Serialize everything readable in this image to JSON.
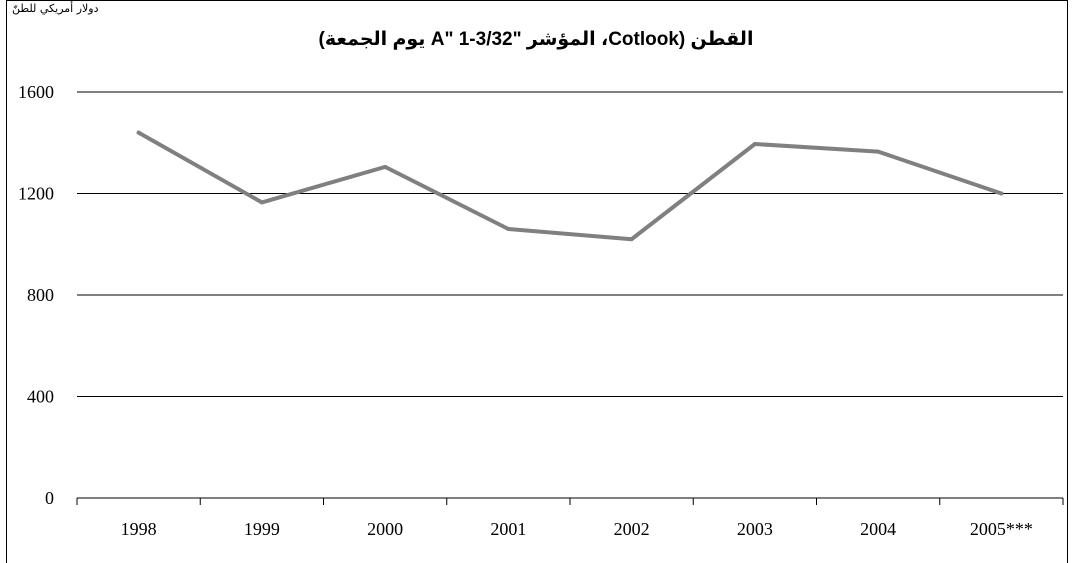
{
  "chart_data": {
    "type": "line",
    "title": "القطن (Cotlook، المؤشر \"A\" 1-3/32 يوم الجمعة)",
    "ylabel": "دولار أمريكي للطنّ",
    "xlabel": "",
    "categories": [
      "1998",
      "1999",
      "2000",
      "2001",
      "2002",
      "2003",
      "2004",
      "2005***"
    ],
    "series": [
      {
        "values": [
          1440,
          1165,
          1305,
          1060,
          1020,
          1395,
          1365,
          1200
        ]
      }
    ],
    "ylim": [
      0,
      1600
    ],
    "yticks": [
      "0",
      "400",
      "800",
      "1200",
      "1600"
    ],
    "grid": true,
    "legend": "none",
    "colors": {
      "line": "#808080",
      "grid": "#000000"
    }
  }
}
